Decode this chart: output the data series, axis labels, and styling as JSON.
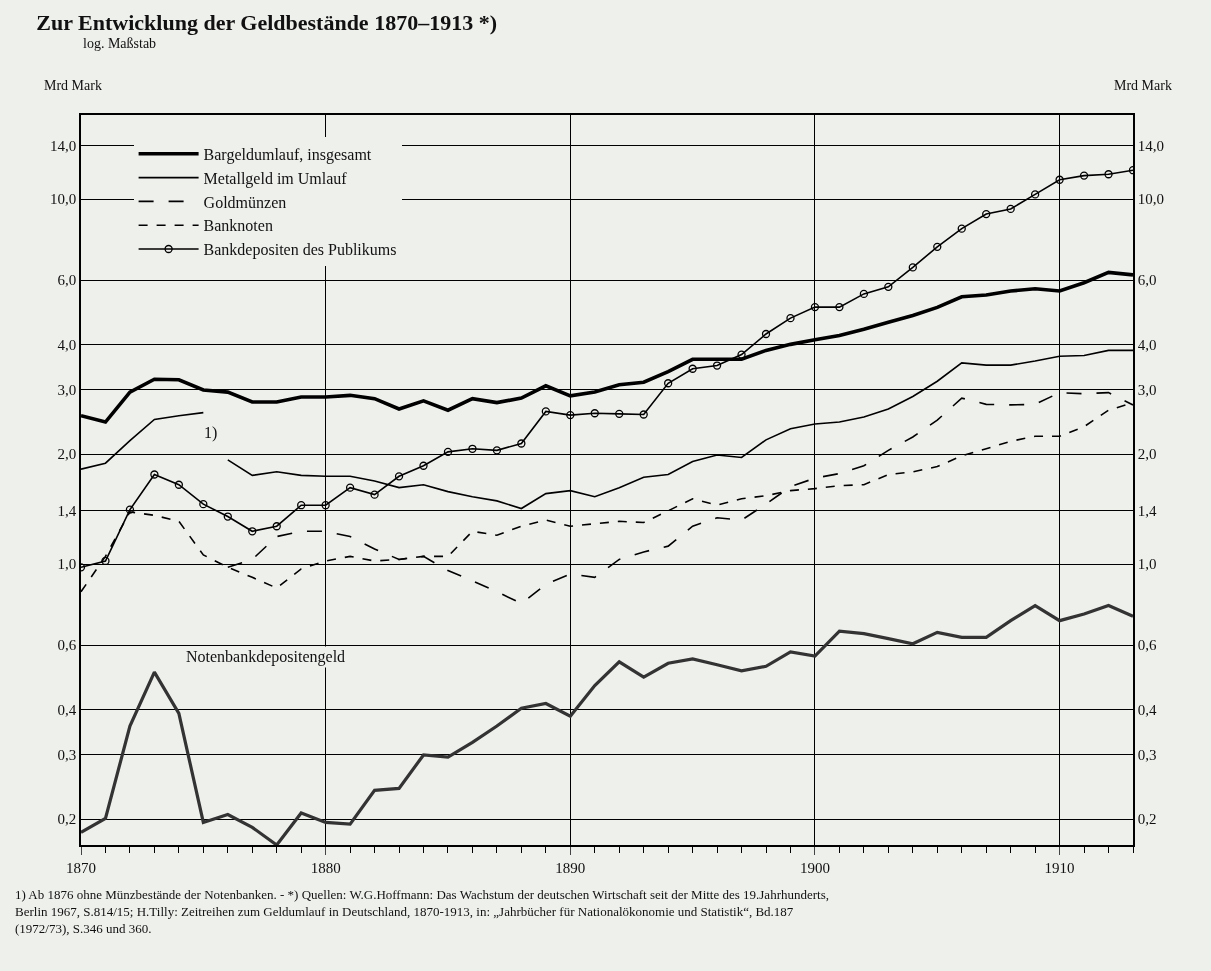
{
  "chart_data": {
    "type": "line",
    "title": "Zur Entwicklung der Geldbestände 1870–1913 *)",
    "subtitle": "log. Maßstab",
    "ylabel": "Mrd Mark",
    "y2label": "Mrd Mark",
    "x": [
      1870,
      1871,
      1872,
      1873,
      1874,
      1875,
      1876,
      1877,
      1878,
      1879,
      1880,
      1881,
      1882,
      1883,
      1884,
      1885,
      1886,
      1887,
      1888,
      1889,
      1890,
      1891,
      1892,
      1893,
      1894,
      1895,
      1896,
      1897,
      1898,
      1899,
      1900,
      1901,
      1902,
      1903,
      1904,
      1905,
      1906,
      1907,
      1908,
      1909,
      1910,
      1911,
      1912,
      1913
    ],
    "series": [
      {
        "name": "Bargeldumlauf, insgesamt",
        "color": "#000000",
        "line_style": "solid",
        "values": [
          2.55,
          2.45,
          2.96,
          3.21,
          3.2,
          3.0,
          2.96,
          2.78,
          2.78,
          2.87,
          2.87,
          2.9,
          2.84,
          2.66,
          2.8,
          2.64,
          2.84,
          2.77,
          2.85,
          3.08,
          2.89,
          2.96,
          3.1,
          3.15,
          3.37,
          3.64,
          3.64,
          3.64,
          3.85,
          4.0,
          4.12,
          4.23,
          4.4,
          4.6,
          4.8,
          5.05,
          5.4,
          5.46,
          5.6,
          5.68,
          5.6,
          5.9,
          6.3,
          6.2
        ]
      },
      {
        "name": "Metallgeld im Umlauf",
        "color": "#000000",
        "line_style": "solid",
        "x": [
          1870,
          1871,
          1872,
          1873,
          1874,
          1875
        ],
        "values": [
          1.82,
          1.89,
          2.18,
          2.49,
          2.55,
          2.6
        ]
      },
      {
        "color": "#000000",
        "line_style": "solid",
        "x": [
          1876,
          1877,
          1878,
          1879,
          1880,
          1881,
          1882,
          1883,
          1884,
          1885,
          1886,
          1887,
          1888,
          1889,
          1890,
          1891,
          1892,
          1893,
          1894,
          1895,
          1896,
          1897,
          1898,
          1899,
          1900,
          1901,
          1902,
          1903,
          1904,
          1905,
          1906,
          1907,
          1908,
          1909,
          1910,
          1911,
          1912,
          1913
        ],
        "values": [
          1.93,
          1.75,
          1.79,
          1.75,
          1.74,
          1.74,
          1.69,
          1.62,
          1.65,
          1.58,
          1.53,
          1.49,
          1.42,
          1.56,
          1.59,
          1.53,
          1.62,
          1.73,
          1.76,
          1.91,
          1.99,
          1.96,
          2.19,
          2.35,
          2.42,
          2.45,
          2.53,
          2.66,
          2.88,
          3.17,
          3.56,
          3.51,
          3.51,
          3.6,
          3.71,
          3.73,
          3.85,
          3.85
        ]
      },
      {
        "name": "Goldmünzen",
        "color": "#000000",
        "line_style": "dashed",
        "values": [
          null,
          null,
          null,
          null,
          null,
          null,
          0.98,
          1.03,
          1.19,
          1.23,
          1.23,
          1.19,
          1.1,
          1.03,
          1.05,
          0.96,
          0.9,
          0.84,
          0.78,
          0.88,
          0.94,
          0.92,
          1.03,
          1.08,
          1.12,
          1.27,
          1.34,
          1.32,
          1.46,
          1.63,
          1.72,
          1.77,
          1.86,
          2.05,
          2.23,
          2.48,
          2.85,
          2.74,
          2.73,
          2.74,
          2.95,
          2.93,
          2.95,
          2.73
        ]
      },
      {
        "name": "Banknoten",
        "color": "#000000",
        "line_style": "dotted",
        "values": [
          0.84,
          1.05,
          1.39,
          1.36,
          1.31,
          1.06,
          0.98,
          0.92,
          0.86,
          0.97,
          1.02,
          1.05,
          1.02,
          1.03,
          1.05,
          1.05,
          1.23,
          1.2,
          1.27,
          1.32,
          1.27,
          1.29,
          1.31,
          1.3,
          1.4,
          1.51,
          1.45,
          1.51,
          1.54,
          1.59,
          1.61,
          1.64,
          1.65,
          1.76,
          1.79,
          1.85,
          1.98,
          2.07,
          2.17,
          2.24,
          2.24,
          2.38,
          2.64,
          2.77
        ]
      },
      {
        "name": "Bankdepositen des Publikums",
        "color": "#000000",
        "line_style": "solid",
        "marker": "circle",
        "values": [
          0.98,
          1.02,
          1.41,
          1.76,
          1.65,
          1.46,
          1.35,
          1.23,
          1.27,
          1.45,
          1.45,
          1.62,
          1.55,
          1.74,
          1.86,
          2.03,
          2.07,
          2.05,
          2.14,
          2.62,
          2.56,
          2.59,
          2.58,
          2.57,
          3.13,
          3.43,
          3.5,
          3.75,
          4.27,
          4.72,
          5.06,
          5.06,
          5.5,
          5.75,
          6.5,
          7.4,
          8.3,
          9.1,
          9.4,
          10.3,
          11.3,
          11.6,
          11.7,
          12.0
        ]
      },
      {
        "name": "Notenbankdepositengeld",
        "color": "#333333",
        "line_style": "solid",
        "values": [
          0.184,
          0.201,
          0.36,
          0.506,
          0.39,
          0.196,
          0.206,
          0.19,
          0.17,
          0.208,
          0.196,
          0.194,
          0.24,
          0.243,
          0.3,
          0.296,
          0.325,
          0.36,
          0.403,
          0.415,
          0.383,
          0.465,
          0.54,
          0.49,
          0.535,
          0.55,
          0.53,
          0.51,
          0.525,
          0.575,
          0.56,
          0.655,
          0.645,
          0.625,
          0.605,
          0.65,
          0.63,
          0.63,
          0.7,
          0.77,
          0.7,
          0.73,
          0.77,
          0.72
        ]
      }
    ],
    "xlim": [
      1870,
      1913
    ],
    "xticks": [
      1870,
      1880,
      1890,
      1900,
      1910
    ],
    "ylim": [
      0.17,
      17
    ],
    "yticks": [
      {
        "value": 0.2,
        "label": "0,2"
      },
      {
        "value": 0.3,
        "label": "0,3"
      },
      {
        "value": 0.4,
        "label": "0,4"
      },
      {
        "value": 0.6,
        "label": "0,6"
      },
      {
        "value": 1.0,
        "label": "1,0"
      },
      {
        "value": 1.4,
        "label": "1,4"
      },
      {
        "value": 2.0,
        "label": "2,0"
      },
      {
        "value": 3.0,
        "label": "3,0"
      },
      {
        "value": 4.0,
        "label": "4,0"
      },
      {
        "value": 6.0,
        "label": "6,0"
      },
      {
        "value": 10.0,
        "label": "10,0"
      },
      {
        "value": 14.0,
        "label": "14,0"
      }
    ],
    "log": true,
    "grid": true,
    "legend": "top left",
    "annotations": [
      "1)",
      "1) Ab 1876 ohne Münzbestände der Notenbanken. - *) Quellen: W.G.Hoffmann: Das Wachstum der deutschen Wirtschaft seit der Mitte des 19.Jahrhunderts, Berlin 1967, S.814/15; H.Tilly: Zeitreihen zum Geldumlauf in Deutschland, 1870-1913, in: „Jahrbücher für Nationalökonomie und Statistik“, Bd.187 (1972/73), S.346 und 360."
    ]
  }
}
